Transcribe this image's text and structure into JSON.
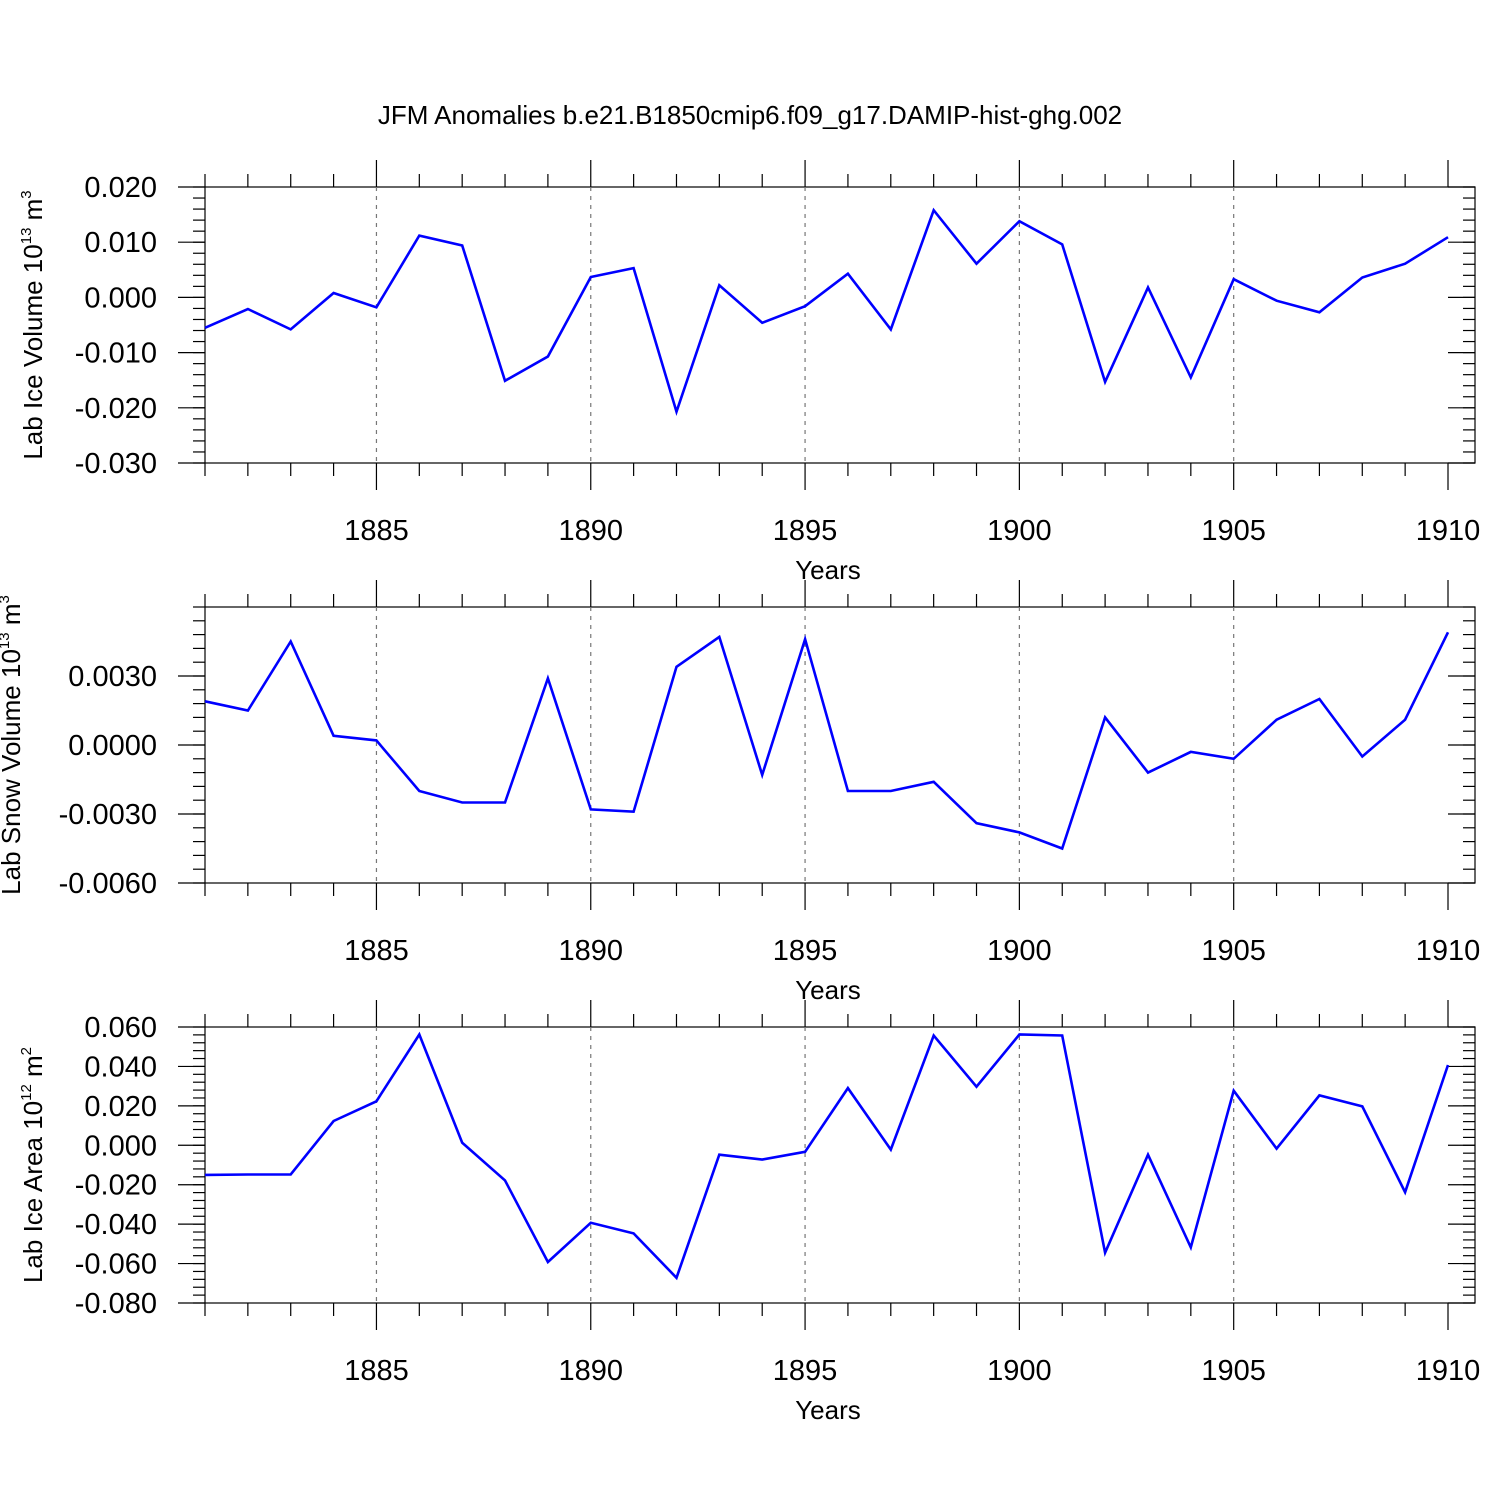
{
  "title": "JFM Anomalies b.e21.B1850cmip6.f09_g17.DAMIP-hist-ghg.002",
  "colors": {
    "line": "#0000ff",
    "axis": "#000000",
    "grid": "#777777"
  },
  "chart_data": [
    {
      "type": "line",
      "ylabel": {
        "main": "Lab Ice Volume 10",
        "exp": "13",
        "unit": " m",
        "unit_exp": "3"
      },
      "xlabel": "Years",
      "xlim": [
        1881,
        1910
      ],
      "ylim": [
        -0.03,
        0.02
      ],
      "yticks": [
        0.02,
        0.01,
        0.0,
        -0.01,
        -0.02,
        -0.03
      ],
      "ytick_labels": [
        "0.020",
        "0.010",
        "0.000",
        "-0.010",
        "-0.020",
        "-0.030"
      ],
      "xticks": [
        1885,
        1890,
        1895,
        1900,
        1905,
        1910
      ],
      "xtick_labels": [
        "1885",
        "1890",
        "1895",
        "1900",
        "1905",
        "1910"
      ],
      "x": [
        1881,
        1882,
        1883,
        1884,
        1885,
        1886,
        1887,
        1888,
        1889,
        1890,
        1891,
        1892,
        1893,
        1894,
        1895,
        1896,
        1897,
        1898,
        1899,
        1900,
        1901,
        1902,
        1903,
        1904,
        1905,
        1906,
        1907,
        1908,
        1909,
        1910
      ],
      "series": [
        {
          "name": "Lab Ice Volume",
          "values": [
            -0.0055,
            -0.0021,
            -0.0058,
            0.0008,
            -0.0018,
            0.0112,
            0.0094,
            -0.0151,
            -0.0107,
            0.0037,
            0.0053,
            -0.0207,
            0.0022,
            -0.0046,
            -0.0016,
            0.0043,
            -0.0058,
            0.0158,
            0.0061,
            0.0138,
            0.0096,
            -0.0153,
            0.0018,
            -0.0145,
            0.0033,
            -0.0006,
            -0.0027,
            0.0036,
            0.0061,
            0.0109
          ]
        }
      ]
    },
    {
      "type": "line",
      "ylabel": {
        "main": "Lab Snow Volume 10",
        "exp": "13",
        "unit": " m",
        "unit_exp": "3"
      },
      "xlabel": "Years",
      "xlim": [
        1881,
        1910
      ],
      "ylim": [
        -0.006,
        0.006
      ],
      "yticks": [
        0.003,
        0.0,
        -0.003,
        -0.006
      ],
      "ytick_labels": [
        "0.0030",
        "0.0000",
        "-0.0030",
        "-0.0060"
      ],
      "xticks": [
        1885,
        1890,
        1895,
        1900,
        1905,
        1910
      ],
      "xtick_labels": [
        "1885",
        "1890",
        "1895",
        "1900",
        "1905",
        "1910"
      ],
      "x": [
        1881,
        1882,
        1883,
        1884,
        1885,
        1886,
        1887,
        1888,
        1889,
        1890,
        1891,
        1892,
        1893,
        1894,
        1895,
        1896,
        1897,
        1898,
        1899,
        1900,
        1901,
        1902,
        1903,
        1904,
        1905,
        1906,
        1907,
        1908,
        1909,
        1910
      ],
      "series": [
        {
          "name": "Lab Snow Volume",
          "values": [
            0.0019,
            0.0015,
            0.0045,
            0.0004,
            0.0002,
            -0.002,
            -0.0025,
            -0.0025,
            0.0029,
            -0.0028,
            -0.0029,
            0.0034,
            0.0047,
            -0.0013,
            0.0046,
            -0.002,
            -0.002,
            -0.0016,
            -0.0034,
            -0.0038,
            -0.0045,
            0.0012,
            -0.0012,
            -0.0003,
            -0.0006,
            0.0011,
            0.002,
            -0.0005,
            0.0011,
            0.0049
          ]
        }
      ]
    },
    {
      "type": "line",
      "ylabel": {
        "main": "Lab Ice Area 10",
        "exp": "12",
        "unit": " m",
        "unit_exp": "2"
      },
      "xlabel": "Years",
      "xlim": [
        1881,
        1910
      ],
      "ylim": [
        -0.08,
        0.06
      ],
      "yticks": [
        0.06,
        0.04,
        0.02,
        0.0,
        -0.02,
        -0.04,
        -0.06,
        -0.08
      ],
      "ytick_labels": [
        "0.060",
        "0.040",
        "0.020",
        "0.000",
        "-0.020",
        "-0.040",
        "-0.060",
        "-0.080"
      ],
      "xticks": [
        1885,
        1890,
        1895,
        1900,
        1905,
        1910
      ],
      "xtick_labels": [
        "1885",
        "1890",
        "1895",
        "1900",
        "1905",
        "1910"
      ],
      "x": [
        1881,
        1882,
        1883,
        1884,
        1885,
        1886,
        1887,
        1888,
        1889,
        1890,
        1891,
        1892,
        1893,
        1894,
        1895,
        1896,
        1897,
        1898,
        1899,
        1900,
        1901,
        1902,
        1903,
        1904,
        1905,
        1906,
        1907,
        1908,
        1909,
        1910
      ],
      "series": [
        {
          "name": "Lab Ice Area",
          "values": [
            -0.015,
            -0.0148,
            -0.0148,
            0.0123,
            0.0223,
            0.0562,
            0.0013,
            -0.0178,
            -0.0592,
            -0.0393,
            -0.0447,
            -0.0672,
            -0.0048,
            -0.0072,
            -0.0033,
            0.029,
            -0.0022,
            0.0557,
            0.0297,
            0.0562,
            0.0557,
            -0.0545,
            -0.0048,
            -0.0518,
            0.0277,
            -0.0017,
            0.0253,
            0.0197,
            -0.0238,
            0.0407
          ]
        }
      ]
    }
  ]
}
